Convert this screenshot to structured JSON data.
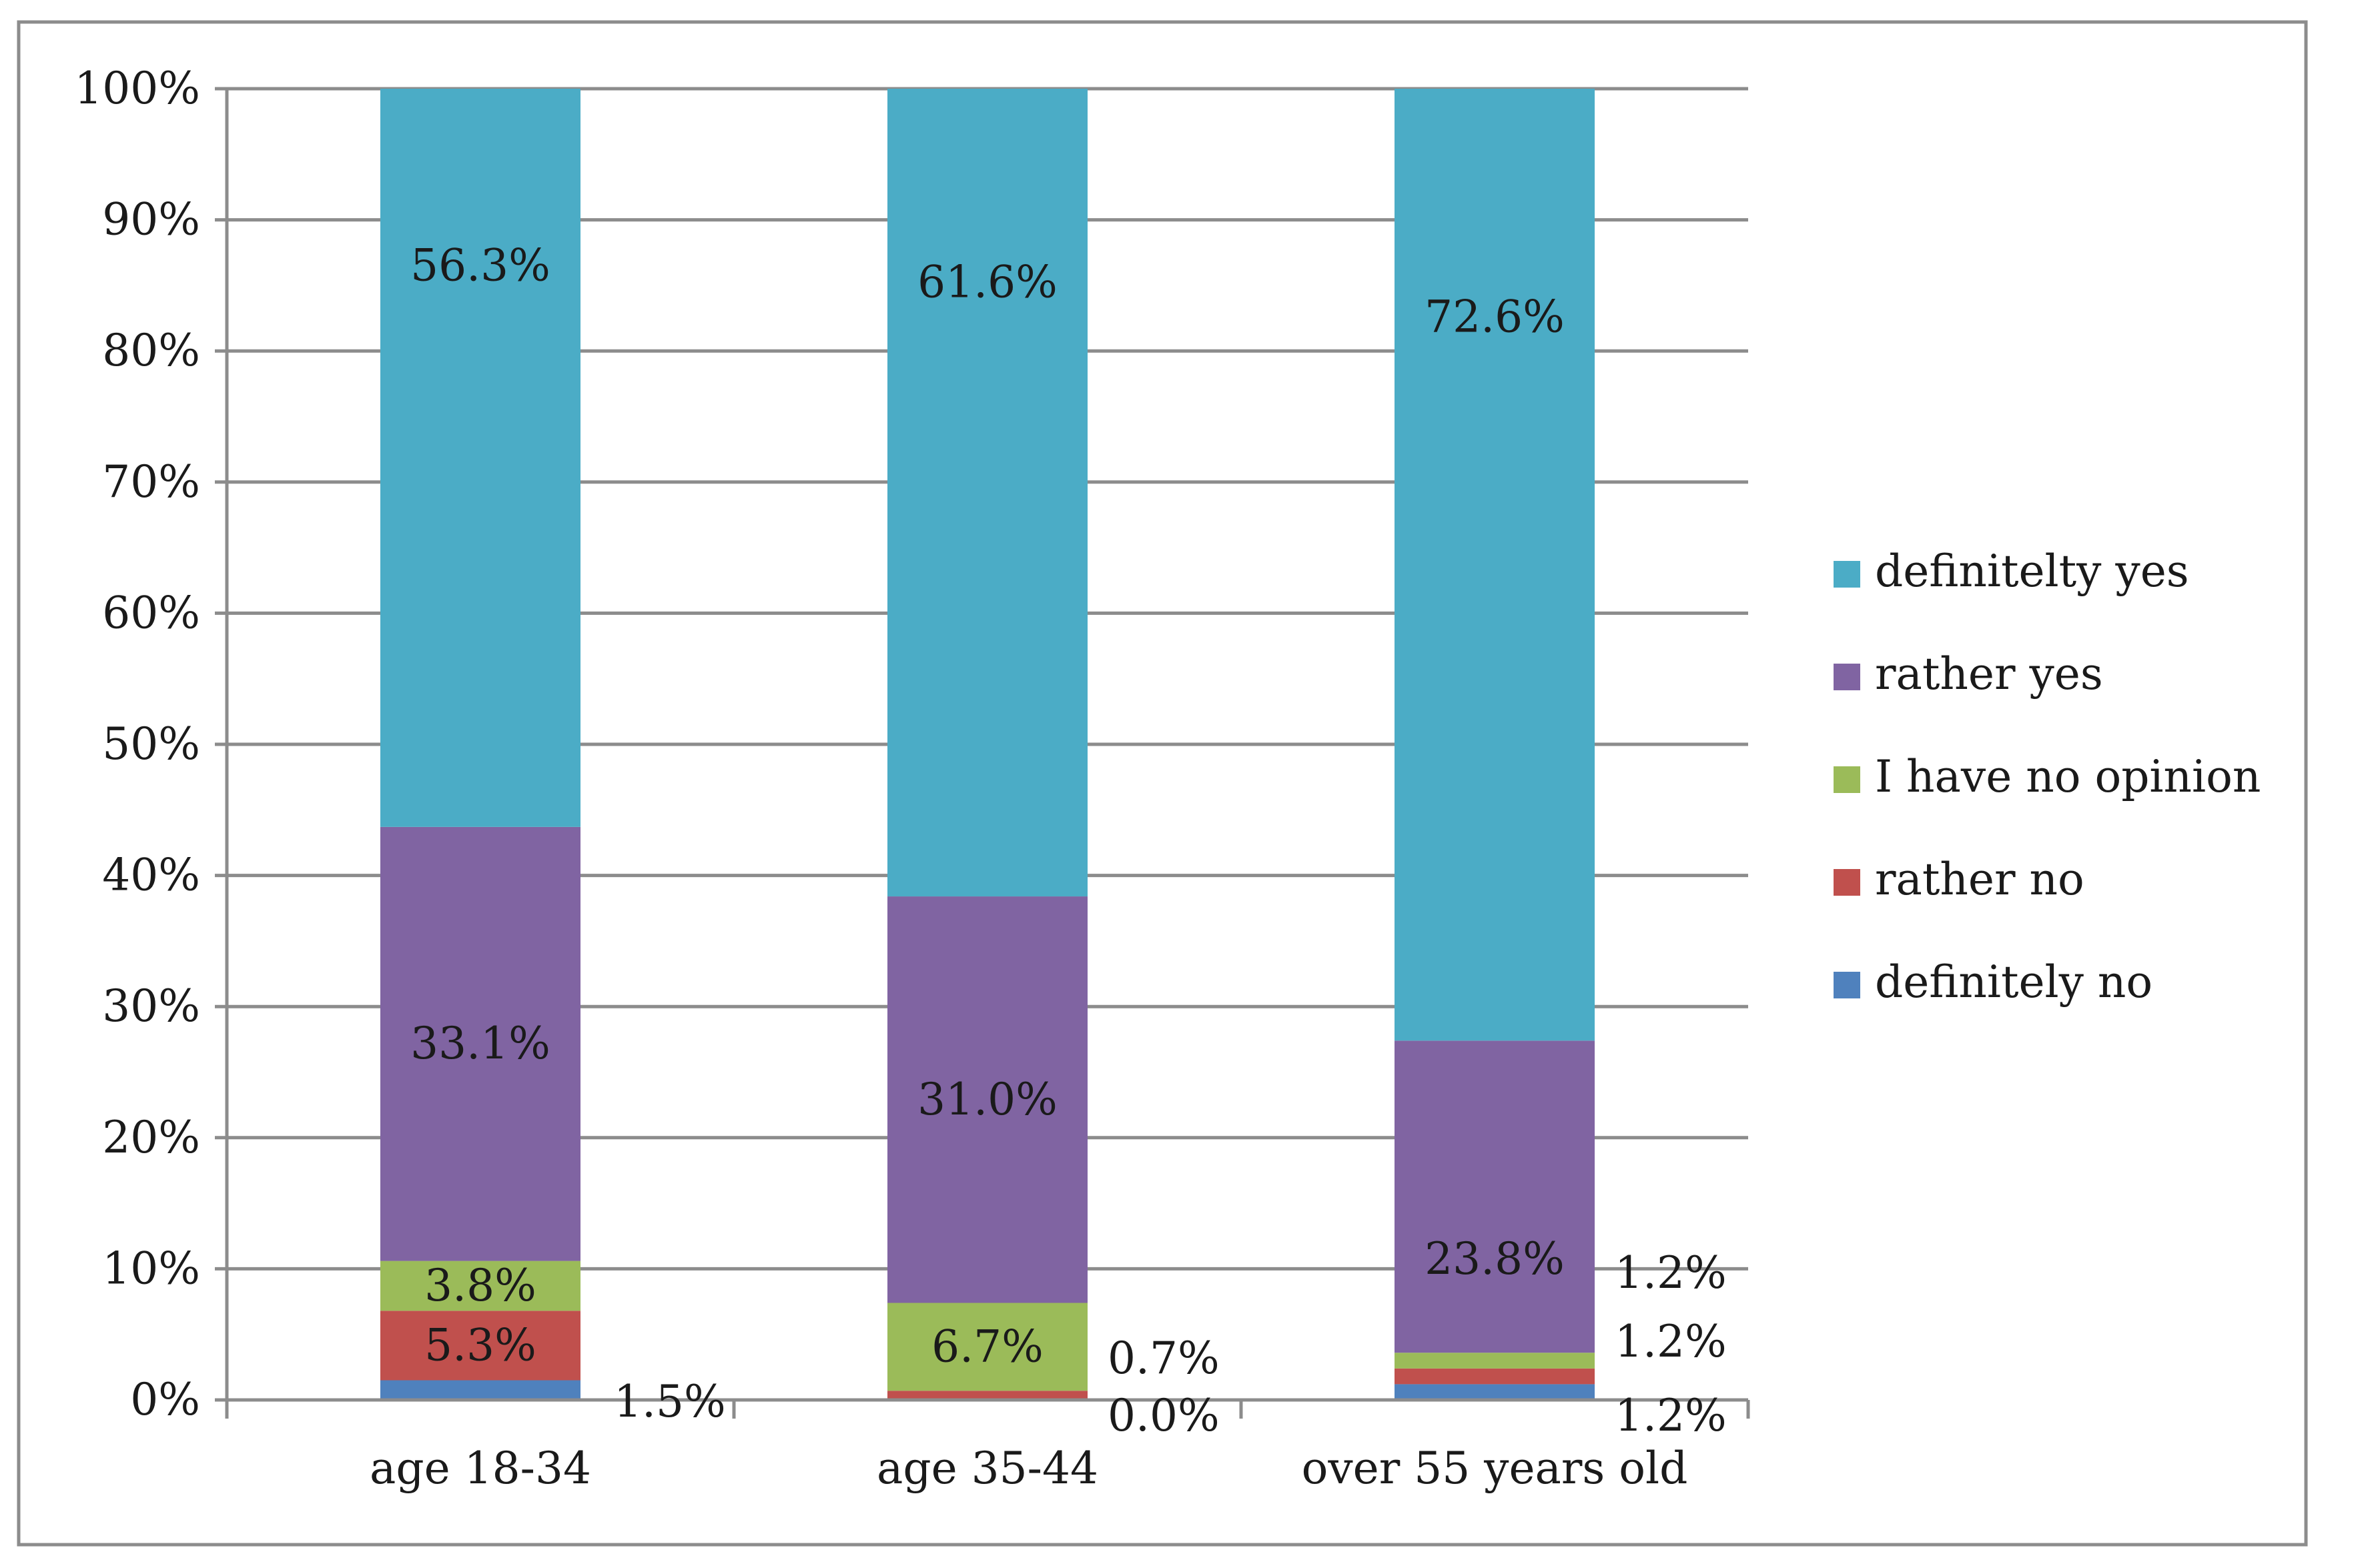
{
  "chart_data": {
    "type": "bar",
    "stacked": true,
    "normalized": true,
    "categories": [
      "age 18-34",
      "age 35-44",
      "over 55 years old"
    ],
    "series": [
      {
        "name": "definitely no",
        "color": "#4f81bd",
        "values": [
          1.5,
          0.0,
          1.2
        ]
      },
      {
        "name": "rather no",
        "color": "#c0504d",
        "values": [
          5.3,
          0.7,
          1.2
        ]
      },
      {
        "name": "I have no opinion",
        "color": "#9bbb59",
        "values": [
          3.8,
          6.7,
          1.2
        ]
      },
      {
        "name": "rather yes",
        "color": "#8064a2",
        "values": [
          33.1,
          31.0,
          23.8
        ]
      },
      {
        "name": "definitelty yes",
        "color": "#4bacc6",
        "values": [
          56.3,
          61.6,
          72.6
        ]
      }
    ],
    "data_labels": [
      [
        {
          "series": 0,
          "text": "1.5%",
          "placement": "outside-right"
        },
        {
          "series": 1,
          "text": "5.3%",
          "placement": "inside"
        },
        {
          "series": 2,
          "text": "3.8%",
          "placement": "inside"
        },
        {
          "series": 3,
          "text": "33.1%",
          "placement": "inside"
        },
        {
          "series": 4,
          "text": "56.3%",
          "placement": "inside-upper"
        }
      ],
      [
        {
          "series": 0,
          "text": "0.0%",
          "placement": "outside-right-low"
        },
        {
          "series": 1,
          "text": "0.7%",
          "placement": "outside-right"
        },
        {
          "series": 2,
          "text": "6.7%",
          "placement": "inside"
        },
        {
          "series": 3,
          "text": "31.0%",
          "placement": "inside"
        },
        {
          "series": 4,
          "text": "61.6%",
          "placement": "inside-upper"
        }
      ],
      [
        {
          "series": 0,
          "text": "1.2%",
          "placement": "outside-right-low"
        },
        {
          "series": 1,
          "text": "1.2%",
          "placement": "outside-right"
        },
        {
          "series": 2,
          "text": "1.2%",
          "placement": "outside-right-high"
        },
        {
          "series": 3,
          "text": "23.8%",
          "placement": "inside-lower"
        },
        {
          "series": 4,
          "text": "72.6%",
          "placement": "inside-upper"
        }
      ]
    ],
    "y_ticks": [
      "0%",
      "10%",
      "20%",
      "30%",
      "40%",
      "50%",
      "60%",
      "70%",
      "80%",
      "90%",
      "100%"
    ],
    "ylim": [
      0,
      100
    ],
    "grid": true,
    "legend": {
      "position": "right",
      "order": [
        4,
        3,
        2,
        1,
        0
      ]
    },
    "title": "",
    "xlabel": "",
    "ylabel": ""
  }
}
